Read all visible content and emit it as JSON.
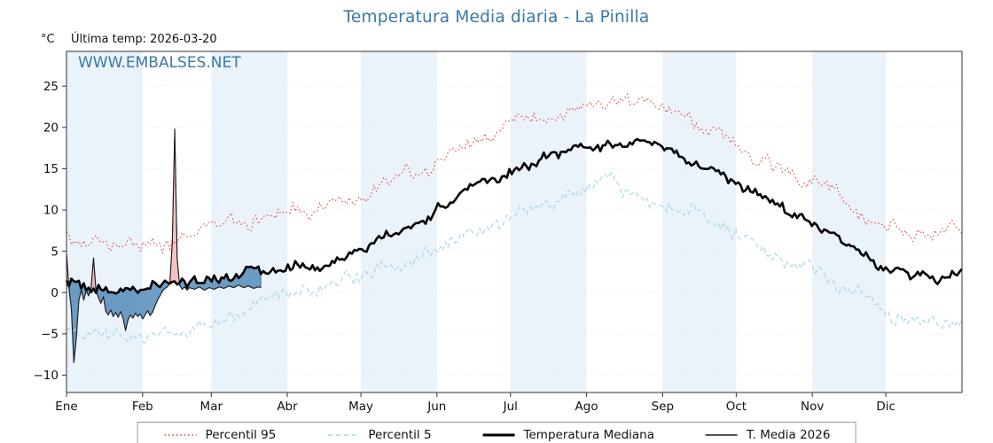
{
  "header": {
    "title": "Temperatura Media diaria - La Pinilla",
    "unit_label": "°C",
    "last_temp_label": "Última temp: 2026-03-20",
    "watermark": "WWW.EMBALSES.NET"
  },
  "style": {
    "title_color": "#3878a8",
    "watermark_color": "#3878a8",
    "band_color": "#eaf2fa",
    "grid_color": "#dde6ee",
    "axis_color": "#333333",
    "fill_below_color": "#4682b4",
    "fill_below_opacity": 0.78,
    "fill_below_stroke": "#31618e",
    "fill_above_color": "#e05050",
    "fill_above_opacity": 0.35,
    "fill_above_stroke": "#c03030"
  },
  "chart_data": {
    "type": "line",
    "title": "Temperatura Media diaria - La Pinilla",
    "subtitle": "Última temp: 2026-03-20",
    "xlabel": "",
    "ylabel": "°C",
    "legend_position": "bottom-center",
    "grid": "horizontal-faint",
    "x_axis": {
      "months": [
        "Ene",
        "Feb",
        "Mar",
        "Abr",
        "May",
        "Jun",
        "Jul",
        "Ago",
        "Sep",
        "Oct",
        "Nov",
        "Dic"
      ],
      "days_per_month": [
        31,
        28,
        31,
        30,
        31,
        30,
        31,
        31,
        30,
        31,
        30,
        31
      ]
    },
    "y_axis": {
      "unit": "°C",
      "ticks": [
        -10,
        -5,
        0,
        5,
        10,
        15,
        20,
        25
      ],
      "range": [
        -12.1,
        29.2
      ]
    },
    "series": [
      {
        "name": "Percentil 95",
        "type": "control",
        "style": "dotted",
        "color": "#e04444",
        "width": 1.1,
        "dash": "1.6 2.8",
        "jitter": 0.55,
        "wander": 0.5,
        "control_days": [
          0,
          15,
          45,
          74,
          105,
          135,
          166,
          196,
          227,
          258,
          288,
          319,
          349,
          364
        ],
        "control_values": [
          6.5,
          5.8,
          6.3,
          8.8,
          10.8,
          13.8,
          18.0,
          21.3,
          23.2,
          20.0,
          15.2,
          10.2,
          7.0,
          7.6
        ]
      },
      {
        "name": "Percentil 5",
        "type": "control",
        "style": "dashed",
        "color": "#a9d7e8",
        "width": 1.2,
        "dash": "5.5 3.5",
        "jitter": 0.55,
        "wander": 0.5,
        "control_days": [
          0,
          15,
          45,
          74,
          105,
          135,
          166,
          196,
          227,
          258,
          288,
          319,
          349,
          364
        ],
        "control_values": [
          -4.0,
          -4.8,
          -4.6,
          -2.2,
          0.4,
          3.2,
          7.5,
          11.3,
          12.6,
          9.3,
          4.8,
          0.4,
          -3.6,
          -3.0
        ]
      },
      {
        "name": "Temperatura Mediana",
        "type": "control",
        "style": "solid",
        "color": "#000000",
        "width": 2.6,
        "dash": "",
        "jitter": 0.4,
        "wander": 0.35,
        "control_days": [
          0,
          15,
          45,
          74,
          105,
          135,
          166,
          196,
          227,
          258,
          288,
          319,
          349,
          364
        ],
        "control_values": [
          1.2,
          0.5,
          0.8,
          2.2,
          3.8,
          7.6,
          12.5,
          16.2,
          18.2,
          15.3,
          10.8,
          5.6,
          1.8,
          2.6
        ]
      },
      {
        "name": "T. Media 2026",
        "type": "points",
        "style": "solid",
        "color": "#1a1a1a",
        "width": 1.1,
        "dash": "",
        "points": [
          [
            0,
            4.8
          ],
          [
            1,
            0.5
          ],
          [
            2,
            -2.0
          ],
          [
            3,
            -8.5
          ],
          [
            4,
            -5.5
          ],
          [
            5,
            -1.0
          ],
          [
            6,
            0.3
          ],
          [
            7,
            -0.9
          ],
          [
            8,
            0.2
          ],
          [
            9,
            -0.4
          ],
          [
            10,
            0.6
          ],
          [
            11,
            4.2
          ],
          [
            12,
            0.2
          ],
          [
            13,
            -0.6
          ],
          [
            14,
            -1.3
          ],
          [
            15,
            -0.5
          ],
          [
            16,
            -2.3
          ],
          [
            17,
            -2.7
          ],
          [
            18,
            -2.1
          ],
          [
            19,
            -2.9
          ],
          [
            20,
            -2.4
          ],
          [
            21,
            -3.0
          ],
          [
            22,
            -2.3
          ],
          [
            23,
            -3.1
          ],
          [
            24,
            -4.6
          ],
          [
            25,
            -3.3
          ],
          [
            26,
            -2.7
          ],
          [
            27,
            -3.1
          ],
          [
            28,
            -2.5
          ],
          [
            29,
            -2.9
          ],
          [
            30,
            -2.6
          ],
          [
            31,
            -3.2
          ],
          [
            32,
            -2.7
          ],
          [
            33,
            -2.2
          ],
          [
            34,
            -2.8
          ],
          [
            35,
            -2.4
          ],
          [
            36,
            -1.6
          ],
          [
            37,
            -0.9
          ],
          [
            38,
            -0.4
          ],
          [
            39,
            0.2
          ],
          [
            40,
            0.5
          ],
          [
            41,
            0.7
          ],
          [
            42,
            1.1
          ],
          [
            43,
            6.0
          ],
          [
            44,
            19.8
          ],
          [
            45,
            4.0
          ],
          [
            46,
            0.9
          ],
          [
            47,
            0.4
          ],
          [
            48,
            0.7
          ],
          [
            49,
            0.3
          ],
          [
            50,
            0.6
          ],
          [
            52,
            0.4
          ],
          [
            54,
            0.7
          ],
          [
            56,
            0.3
          ],
          [
            58,
            0.6
          ],
          [
            60,
            0.4
          ],
          [
            62,
            0.7
          ],
          [
            64,
            0.5
          ],
          [
            66,
            0.8
          ],
          [
            68,
            0.6
          ],
          [
            70,
            0.9
          ],
          [
            72,
            0.6
          ],
          [
            74,
            0.8
          ],
          [
            76,
            0.5
          ],
          [
            78,
            0.7
          ],
          [
            79,
            0.6
          ]
        ]
      }
    ]
  }
}
